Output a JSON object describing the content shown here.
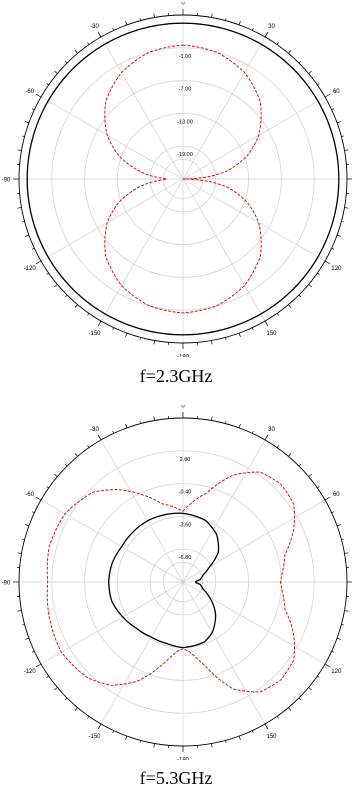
{
  "chart_data": [
    {
      "type": "polar",
      "caption": "f=2.3GHz",
      "angle_tick_labels": [
        "0",
        "30",
        "60",
        "9",
        "120",
        "150",
        "-180",
        "-150",
        "-120",
        "-90",
        "-60",
        "-30"
      ],
      "radial_tick_labels": [
        "-1.00",
        "-7.00",
        "-13.00",
        "-19.00"
      ],
      "radial_tick_values": [
        -1,
        -7,
        -13,
        -19
      ],
      "rlim": [
        -25,
        5
      ],
      "grid": true,
      "series": [
        {
          "style": "solid",
          "color": "#000000",
          "angles": [
            0,
            90,
            180,
            270
          ],
          "values": [
            3.5,
            3.5,
            3.5,
            3.5
          ]
        },
        {
          "style": "dashed",
          "color": "#cc0000",
          "angles": [
            0,
            15,
            30,
            45,
            60,
            70,
            80,
            85,
            88,
            90,
            92,
            95,
            100,
            110,
            120,
            135,
            150,
            165,
            180,
            195,
            210,
            225,
            240,
            250,
            260,
            265,
            268,
            270,
            272,
            275,
            280,
            290,
            300,
            315,
            330,
            345
          ],
          "values": [
            -0.5,
            -1,
            -2.5,
            -5,
            -9,
            -12.5,
            -17,
            -20.5,
            -23.5,
            -25,
            -23.5,
            -20.5,
            -17,
            -12.5,
            -9,
            -5,
            -2.5,
            -1,
            -0.5,
            -1,
            -2.5,
            -5,
            -9,
            -12.5,
            -17,
            -19.5,
            -21.5,
            -22,
            -21.5,
            -19.5,
            -17,
            -12.5,
            -9,
            -5,
            -2.5,
            -1
          ]
        }
      ]
    },
    {
      "type": "polar",
      "caption": "f=5.3GHz",
      "angle_tick_labels": [
        "0",
        "30",
        "60",
        "9",
        "120",
        "150",
        "-180",
        "-150",
        "-120",
        "-90",
        "-60",
        "-30"
      ],
      "radial_tick_labels": [
        "2.80",
        "-0.40",
        "-3.60",
        "-6.80"
      ],
      "radial_tick_values": [
        2.8,
        -0.4,
        -3.6,
        -6.8
      ],
      "rlim": [
        -10,
        6
      ],
      "grid": true,
      "series": [
        {
          "style": "solid",
          "color": "#000000",
          "angles": [
            0,
            20,
            35,
            50,
            60,
            70,
            78,
            82,
            85,
            88,
            90,
            92,
            95,
            98,
            102,
            110,
            120,
            135,
            150,
            160,
            180,
            195,
            210,
            225,
            240,
            255,
            270,
            285,
            300,
            315,
            330,
            345
          ],
          "values": [
            -3.3,
            -3.6,
            -4.3,
            -5.5,
            -7,
            -7.9,
            -8.2,
            -8.3,
            -8.6,
            -8.75,
            -8.75,
            -8.75,
            -8.6,
            -8.3,
            -8.2,
            -7.9,
            -7,
            -5.5,
            -4.3,
            -3.8,
            -3.6,
            -3.8,
            -3.8,
            -3.6,
            -3.2,
            -2.8,
            -2.75,
            -2.85,
            -3.1,
            -3.1,
            -3.1,
            -3.2
          ]
        },
        {
          "style": "dashed",
          "color": "#cc0000",
          "angles": [
            0,
            15,
            25,
            35,
            45,
            55,
            65,
            75,
            85,
            90,
            95,
            105,
            115,
            125,
            135,
            145,
            155,
            165,
            170,
            175,
            180,
            185,
            190,
            195,
            205,
            215,
            225,
            240,
            255,
            270,
            285,
            300,
            315,
            325,
            335,
            345
          ],
          "values": [
            -3.1,
            -1,
            1.5,
            3.1,
            3.5,
            3.2,
            1.9,
            0.3,
            -0.3,
            -0.5,
            -0.3,
            0.3,
            1.9,
            3.2,
            3.5,
            3.1,
            1.5,
            -1.5,
            -2.5,
            -3.2,
            -3.5,
            -3.2,
            -2.5,
            -1.5,
            0.7,
            2.3,
            3.2,
            3.7,
            3.5,
            3.2,
            3.5,
            3.3,
            2.4,
            1.0,
            -0.6,
            -2.1
          ]
        }
      ]
    }
  ]
}
